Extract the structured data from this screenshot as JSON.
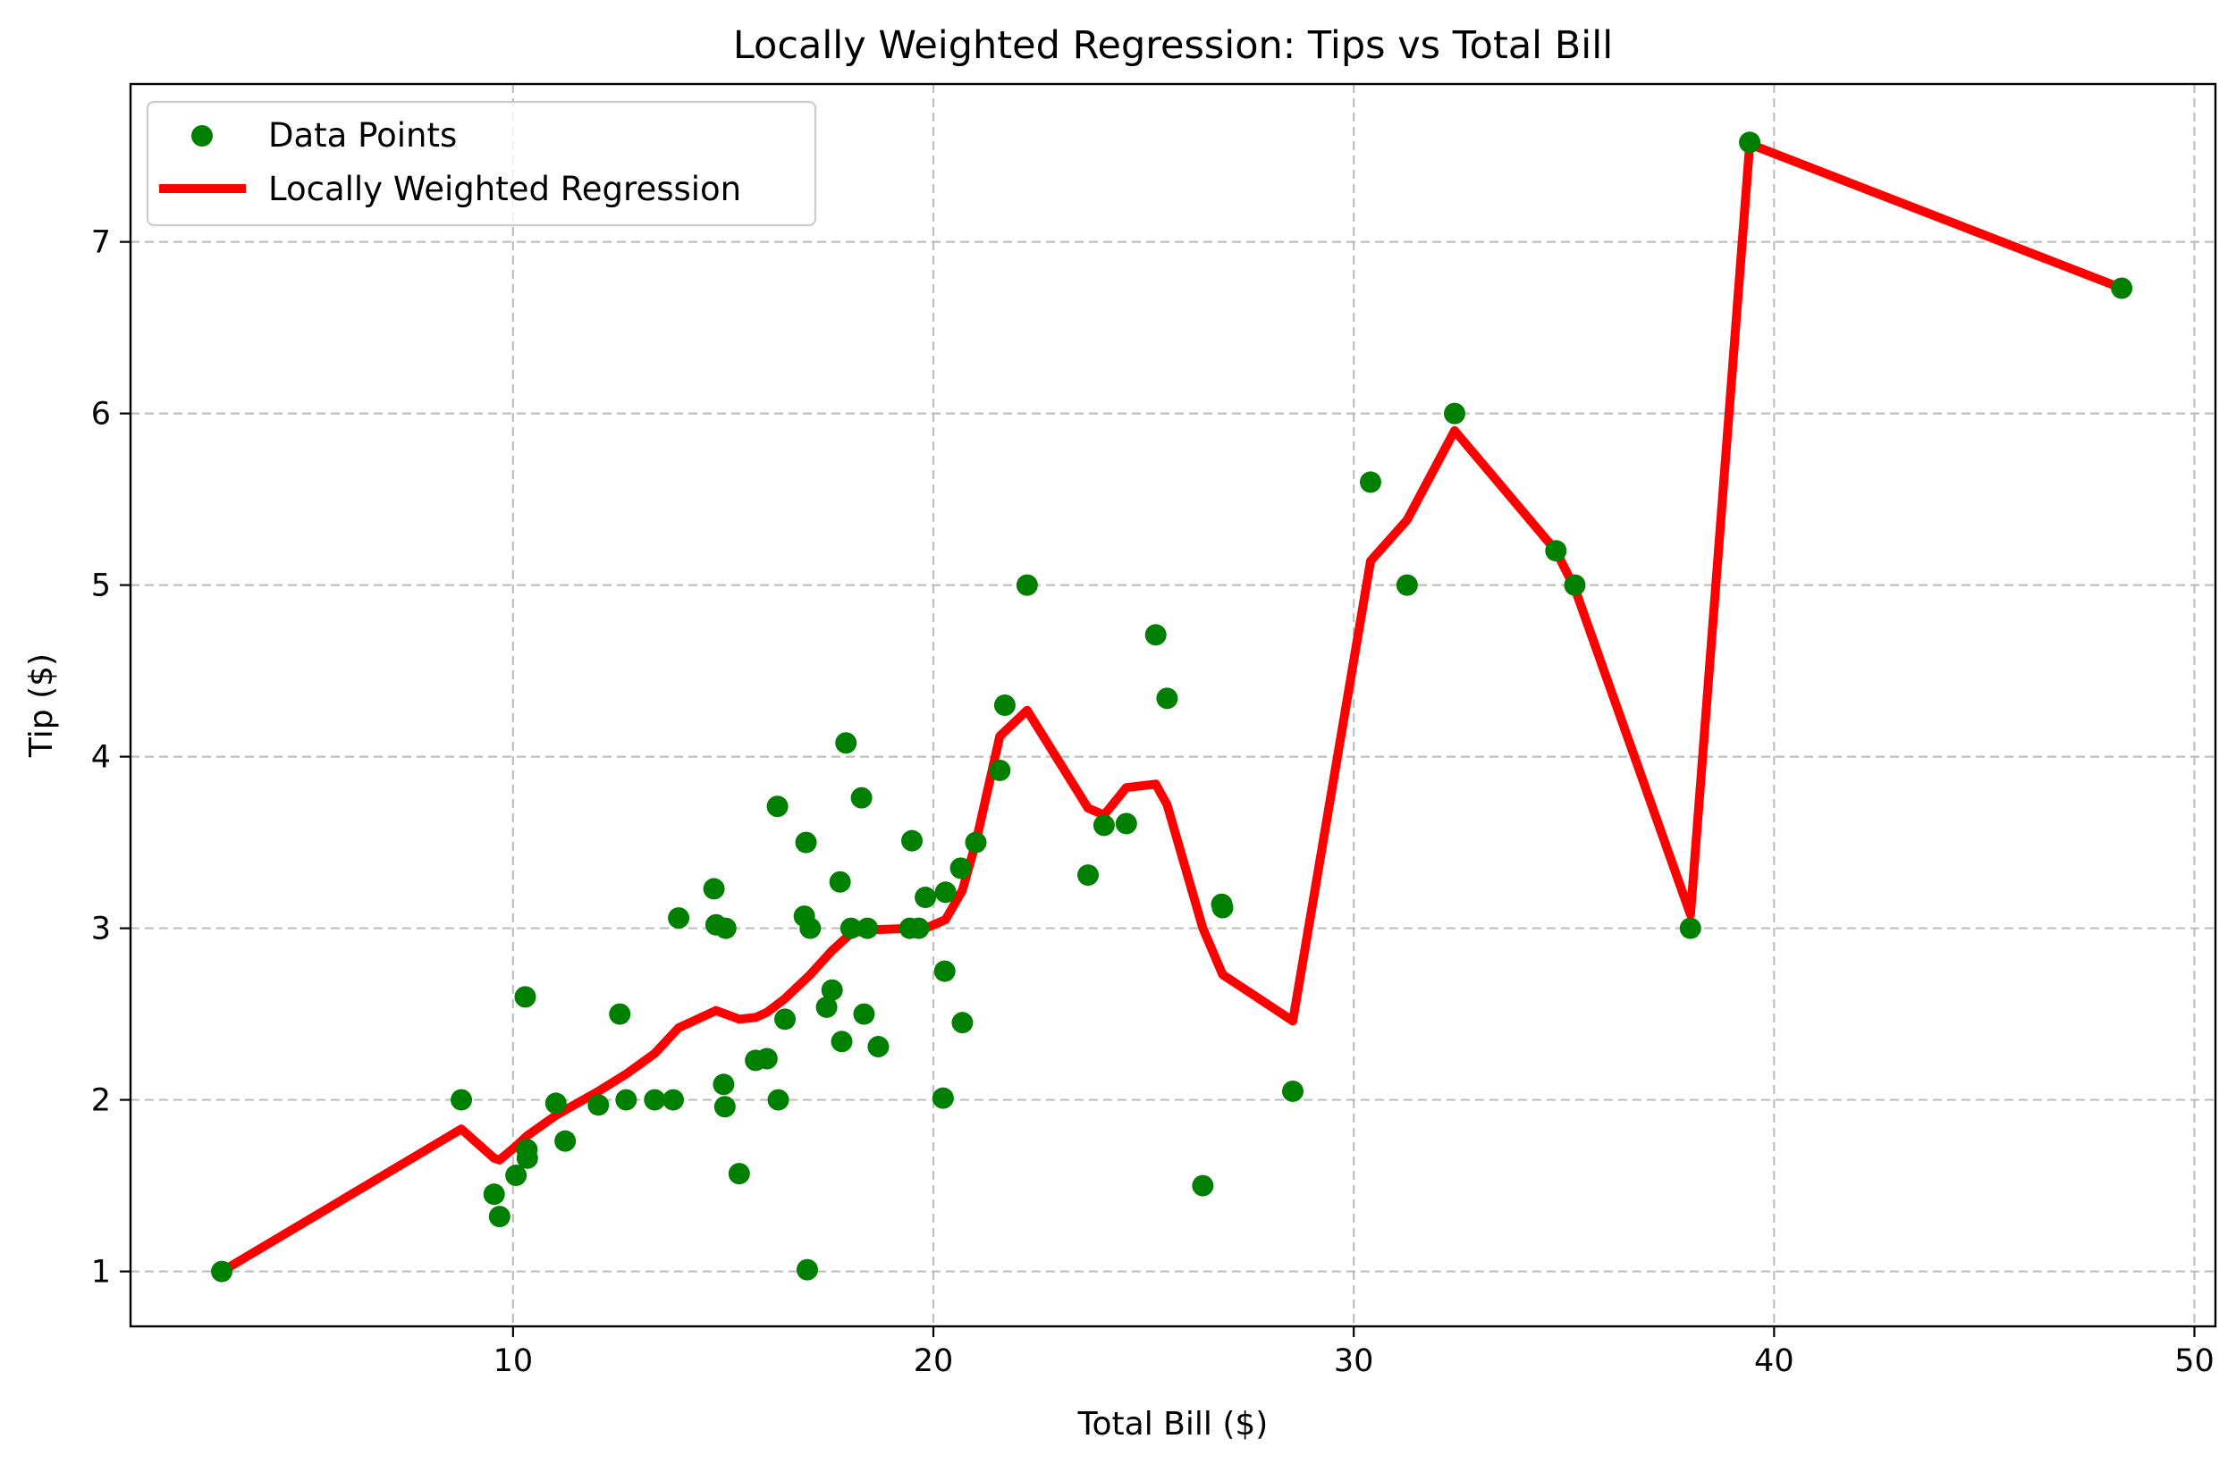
{
  "chart_data": {
    "type": "scatter",
    "title": "Locally Weighted Regression: Tips vs Total Bill",
    "xlabel": "Total Bill ($)",
    "ylabel": "Tip ($)",
    "xlim": [
      0.9,
      50.5
    ],
    "ylim": [
      0.68,
      7.92
    ],
    "xticks": [
      10,
      20,
      30,
      40,
      50
    ],
    "yticks": [
      1,
      2,
      3,
      4,
      5,
      6,
      7
    ],
    "grid": true,
    "legend": "upper-left",
    "colors": {
      "points": "#008000",
      "line": "#ff0000"
    },
    "series": [
      {
        "name": "Data Points",
        "kind": "scatter",
        "points": [
          [
            3.07,
            1.0
          ],
          [
            8.77,
            2.0
          ],
          [
            9.55,
            1.45
          ],
          [
            9.68,
            1.32
          ],
          [
            10.07,
            1.56
          ],
          [
            10.33,
            1.71
          ],
          [
            10.34,
            1.66
          ],
          [
            10.29,
            2.6
          ],
          [
            11.02,
            1.98
          ],
          [
            11.24,
            1.76
          ],
          [
            12.03,
            1.97
          ],
          [
            12.54,
            2.5
          ],
          [
            12.69,
            2.0
          ],
          [
            13.37,
            2.0
          ],
          [
            13.81,
            2.0
          ],
          [
            13.94,
            3.06
          ],
          [
            14.78,
            3.23
          ],
          [
            14.83,
            3.02
          ],
          [
            15.01,
            2.09
          ],
          [
            15.04,
            1.96
          ],
          [
            15.06,
            3.0
          ],
          [
            15.38,
            1.57
          ],
          [
            15.77,
            2.23
          ],
          [
            16.04,
            2.24
          ],
          [
            16.29,
            3.71
          ],
          [
            16.31,
            2.0
          ],
          [
            16.47,
            2.47
          ],
          [
            16.93,
            3.07
          ],
          [
            16.97,
            3.5
          ],
          [
            17.0,
            1.01
          ],
          [
            17.07,
            3.0
          ],
          [
            17.46,
            2.54
          ],
          [
            17.59,
            2.64
          ],
          [
            17.78,
            3.27
          ],
          [
            17.82,
            2.34
          ],
          [
            17.92,
            4.08
          ],
          [
            18.04,
            3.0
          ],
          [
            18.29,
            3.76
          ],
          [
            18.35,
            2.5
          ],
          [
            18.43,
            3.0
          ],
          [
            18.69,
            2.31
          ],
          [
            19.44,
            3.0
          ],
          [
            19.49,
            3.51
          ],
          [
            19.65,
            3.0
          ],
          [
            19.81,
            3.18
          ],
          [
            20.23,
            2.01
          ],
          [
            20.27,
            2.75
          ],
          [
            20.29,
            3.21
          ],
          [
            20.65,
            3.35
          ],
          [
            20.69,
            2.45
          ],
          [
            21.01,
            3.5
          ],
          [
            21.58,
            3.92
          ],
          [
            21.7,
            4.3
          ],
          [
            22.23,
            5.0
          ],
          [
            23.68,
            3.31
          ],
          [
            24.06,
            3.6
          ],
          [
            24.59,
            3.61
          ],
          [
            25.29,
            4.71
          ],
          [
            25.56,
            4.34
          ],
          [
            26.41,
            1.5
          ],
          [
            26.86,
            3.14
          ],
          [
            26.88,
            3.12
          ],
          [
            28.55,
            2.05
          ],
          [
            30.4,
            5.6
          ],
          [
            31.27,
            5.0
          ],
          [
            32.4,
            6.0
          ],
          [
            34.81,
            5.2
          ],
          [
            35.26,
            5.0
          ],
          [
            38.01,
            3.0
          ],
          [
            39.42,
            7.58
          ],
          [
            48.27,
            6.73
          ]
        ]
      },
      {
        "name": "Locally Weighted Regression",
        "kind": "line",
        "points": [
          [
            3.07,
            1.0
          ],
          [
            8.77,
            1.83
          ],
          [
            9.55,
            1.66
          ],
          [
            9.68,
            1.65
          ],
          [
            10.07,
            1.73
          ],
          [
            10.33,
            1.79
          ],
          [
            11.02,
            1.91
          ],
          [
            12.03,
            2.05
          ],
          [
            12.69,
            2.15
          ],
          [
            13.37,
            2.27
          ],
          [
            13.94,
            2.42
          ],
          [
            14.83,
            2.52
          ],
          [
            15.38,
            2.47
          ],
          [
            15.77,
            2.48
          ],
          [
            16.04,
            2.51
          ],
          [
            16.47,
            2.59
          ],
          [
            17.07,
            2.73
          ],
          [
            17.59,
            2.87
          ],
          [
            18.04,
            2.97
          ],
          [
            18.43,
            2.99
          ],
          [
            19.49,
            3.0
          ],
          [
            19.81,
            3.0
          ],
          [
            20.29,
            3.05
          ],
          [
            20.69,
            3.22
          ],
          [
            21.01,
            3.5
          ],
          [
            21.58,
            4.12
          ],
          [
            22.23,
            4.27
          ],
          [
            23.68,
            3.7
          ],
          [
            24.06,
            3.66
          ],
          [
            24.59,
            3.82
          ],
          [
            25.29,
            3.84
          ],
          [
            25.56,
            3.72
          ],
          [
            26.41,
            3.0
          ],
          [
            26.88,
            2.73
          ],
          [
            28.55,
            2.46
          ],
          [
            30.4,
            5.14
          ],
          [
            31.27,
            5.38
          ],
          [
            32.4,
            5.9
          ],
          [
            34.81,
            5.2
          ],
          [
            35.26,
            4.98
          ],
          [
            38.01,
            3.08
          ],
          [
            39.42,
            7.57
          ],
          [
            48.27,
            6.73
          ]
        ]
      }
    ]
  }
}
